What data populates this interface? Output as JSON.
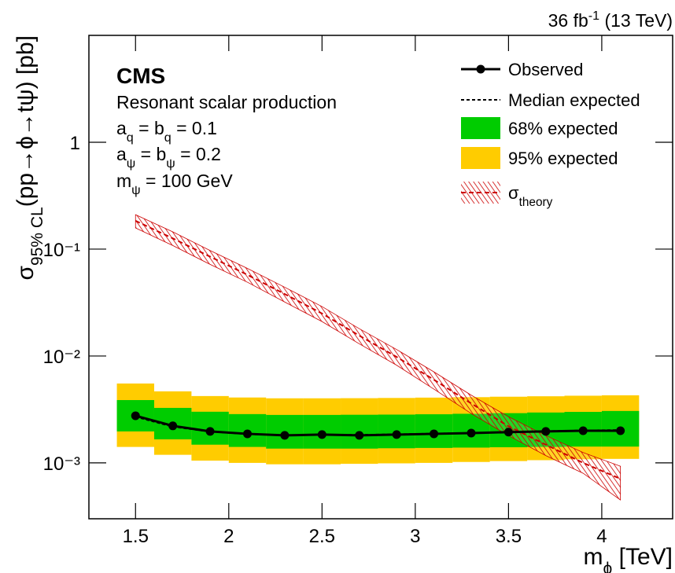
{
  "chart_data": {
    "type": "limit",
    "lumi": [
      {
        "t": "36 fb"
      },
      {
        "t": "-1",
        "script": "sup"
      },
      {
        "t": " (13 TeV)"
      }
    ],
    "annotations": [
      {
        "bold": true,
        "segments": [
          {
            "t": "CMS"
          }
        ]
      },
      {
        "segments": [
          {
            "t": "Resonant scalar production"
          }
        ]
      },
      {
        "segments": [
          {
            "t": "a"
          },
          {
            "t": "q",
            "script": "sub"
          },
          {
            "t": " = b"
          },
          {
            "t": "q",
            "script": "sub"
          },
          {
            "t": " = 0.1"
          }
        ]
      },
      {
        "segments": [
          {
            "t": "a"
          },
          {
            "t": "ψ",
            "script": "sub"
          },
          {
            "t": " = b"
          },
          {
            "t": "ψ",
            "script": "sub"
          },
          {
            "t": " = 0.2"
          }
        ]
      },
      {
        "segments": [
          {
            "t": "m"
          },
          {
            "t": "ψ",
            "script": "sub"
          },
          {
            "t": " = 100 GeV"
          }
        ]
      }
    ],
    "x_label": [
      {
        "t": "m"
      },
      {
        "t": "ϕ",
        "script": "sub"
      },
      {
        "t": " [TeV]"
      }
    ],
    "y_label": [
      {
        "t": "σ"
      },
      {
        "t": "95% CL",
        "script": "sub"
      },
      {
        "t": "(pp→ϕ→tψ) [pb]"
      }
    ],
    "x": [
      1.5,
      1.7,
      1.9,
      2.1,
      2.3,
      2.5,
      2.7,
      2.9,
      3.1,
      3.3,
      3.5,
      3.7,
      3.9,
      4.1
    ],
    "xlim": [
      1.25,
      4.38
    ],
    "xticks": [
      1.5,
      2,
      2.5,
      3,
      3.5,
      4
    ],
    "ylim": [
      0.0003,
      10
    ],
    "log_y": true,
    "yticks": [
      1,
      {
        "value": 0.1,
        "label": "10⁻¹"
      },
      {
        "value": 0.01,
        "label": "10⁻²"
      },
      {
        "value": 0.001,
        "label": "10⁻³"
      }
    ],
    "series": [
      {
        "name": "Observed",
        "kind": "line_markers",
        "color": "#000000",
        "values": [
          0.00276,
          0.00222,
          0.00197,
          0.00187,
          0.00181,
          0.00184,
          0.00181,
          0.00184,
          0.00187,
          0.0019,
          0.00194,
          0.00197,
          0.002,
          0.002
        ]
      },
      {
        "name": "Median expected",
        "kind": "line",
        "style": "dashed",
        "color": "#000000",
        "values": [
          0.0027,
          0.00218,
          0.00196,
          0.00186,
          0.00181,
          0.00183,
          0.00183,
          0.00185,
          0.00188,
          0.0019,
          0.00195,
          0.00198,
          0.00201,
          0.00203
        ]
      },
      {
        "name": "68% expected",
        "kind": "band",
        "color": "#00cc00",
        "lower": [
          0.00197,
          0.00166,
          0.00148,
          0.00141,
          0.00136,
          0.00136,
          0.00136,
          0.00137,
          0.00138,
          0.00139,
          0.0014,
          0.00141,
          0.00142,
          0.00142
        ],
        "upper": [
          0.00387,
          0.00327,
          0.00301,
          0.00286,
          0.00281,
          0.00281,
          0.00282,
          0.00283,
          0.00285,
          0.00288,
          0.00292,
          0.00296,
          0.003,
          0.00306
        ]
      },
      {
        "name": "95% expected",
        "kind": "band",
        "color": "#ffcc00",
        "lower": [
          0.00141,
          0.00119,
          0.00105,
          0.001,
          0.00097,
          0.00097,
          0.00098,
          0.00099,
          0.001,
          0.00102,
          0.00104,
          0.00106,
          0.00108,
          0.00109
        ],
        "upper": [
          0.00553,
          0.00467,
          0.00422,
          0.00409,
          0.00402,
          0.00402,
          0.00403,
          0.00405,
          0.00408,
          0.00412,
          0.00416,
          0.0042,
          0.00425,
          0.00429
        ]
      },
      {
        "name": [
          {
            "t": "σ"
          },
          {
            "t": "theory",
            "script": "sub"
          }
        ],
        "kind": "theory",
        "color": "#cc0000",
        "values": [
          0.184,
          0.126,
          0.085,
          0.0575,
          0.038,
          0.025,
          0.0155,
          0.0098,
          0.006,
          0.0036,
          0.0022,
          0.00148,
          0.001,
          0.00071
        ],
        "lower": [
          0.158,
          0.108,
          0.072,
          0.049,
          0.032,
          0.021,
          0.013,
          0.0082,
          0.0049,
          0.0029,
          0.0018,
          0.00117,
          0.0008,
          0.00045
        ],
        "upper": [
          0.21,
          0.145,
          0.097,
          0.066,
          0.044,
          0.029,
          0.018,
          0.0115,
          0.0071,
          0.0043,
          0.0027,
          0.0018,
          0.00125,
          0.00093
        ]
      }
    ]
  }
}
